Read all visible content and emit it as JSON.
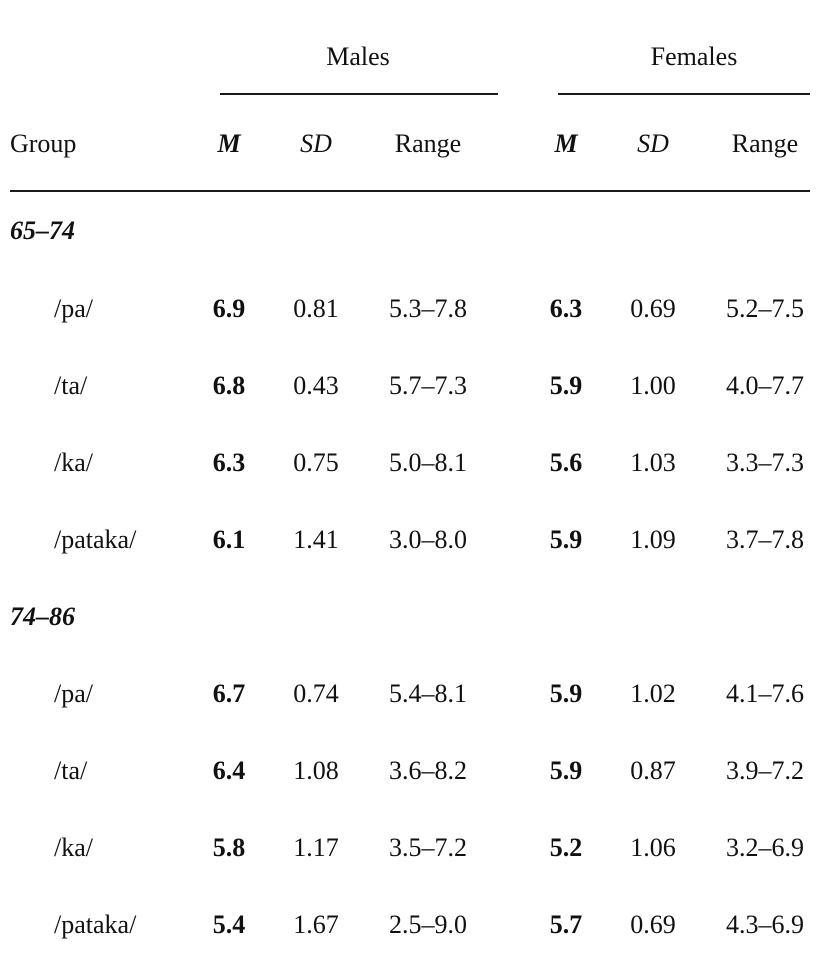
{
  "table": {
    "header": {
      "males_label": "Males",
      "females_label": "Females",
      "group_label": "Group",
      "m_label": "M",
      "sd_label": "SD",
      "range_label": "Range"
    },
    "groups": [
      {
        "label": "65–74",
        "rows": [
          {
            "syllable": "/pa/",
            "male_m": "6.9",
            "male_sd": "0.81",
            "male_range": "5.3–7.8",
            "female_m": "6.3",
            "female_sd": "0.69",
            "female_range": "5.2–7.5"
          },
          {
            "syllable": "/ta/",
            "male_m": "6.8",
            "male_sd": "0.43",
            "male_range": "5.7–7.3",
            "female_m": "5.9",
            "female_sd": "1.00",
            "female_range": "4.0–7.7"
          },
          {
            "syllable": "/ka/",
            "male_m": "6.3",
            "male_sd": "0.75",
            "male_range": "5.0–8.1",
            "female_m": "5.6",
            "female_sd": "1.03",
            "female_range": "3.3–7.3"
          },
          {
            "syllable": "/pataka/",
            "male_m": "6.1",
            "male_sd": "1.41",
            "male_range": "3.0–8.0",
            "female_m": "5.9",
            "female_sd": "1.09",
            "female_range": "3.7–7.8"
          }
        ]
      },
      {
        "label": "74–86",
        "rows": [
          {
            "syllable": "/pa/",
            "male_m": "6.7",
            "male_sd": "0.74",
            "male_range": "5.4–8.1",
            "female_m": "5.9",
            "female_sd": "1.02",
            "female_range": "4.1–7.6"
          },
          {
            "syllable": "/ta/",
            "male_m": "6.4",
            "male_sd": "1.08",
            "male_range": "3.6–8.2",
            "female_m": "5.9",
            "female_sd": "0.87",
            "female_range": "3.9–7.2"
          },
          {
            "syllable": "/ka/",
            "male_m": "5.8",
            "male_sd": "1.17",
            "male_range": "3.5–7.2",
            "female_m": "5.2",
            "female_sd": "1.06",
            "female_range": "3.2–6.9"
          },
          {
            "syllable": "/pataka/",
            "male_m": "5.4",
            "male_sd": "1.67",
            "male_range": "2.5–9.0",
            "female_m": "5.7",
            "female_sd": "0.69",
            "female_range": "4.3–6.9"
          }
        ]
      }
    ]
  }
}
